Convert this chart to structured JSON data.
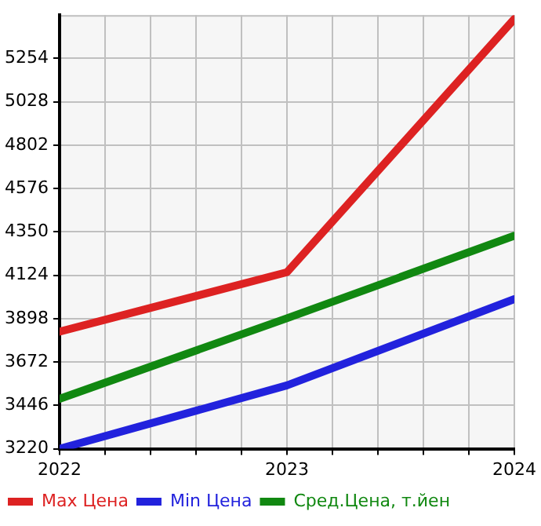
{
  "chart_data": {
    "type": "line",
    "x": [
      2022,
      2023,
      2024
    ],
    "series": [
      {
        "name": "Max Цена",
        "color": "#dd2222",
        "values": [
          3830,
          4140,
          5460
        ]
      },
      {
        "name": "Min Цена",
        "color": "#2222dd",
        "values": [
          3220,
          3550,
          4000
        ]
      },
      {
        "name": "Сред.Цена, т.йен",
        "color": "#118811",
        "values": [
          3480,
          3900,
          4330
        ]
      }
    ],
    "xlim": [
      2022,
      2024
    ],
    "xticks": [
      2022,
      {
        "value": 2022.2,
        "label": null
      },
      {
        "value": 2022.4,
        "label": null
      },
      {
        "value": 2022.6,
        "label": null
      },
      {
        "value": 2022.8,
        "label": null
      },
      2023,
      {
        "value": 2023.2,
        "label": null
      },
      {
        "value": 2023.4,
        "label": null
      },
      {
        "value": 2023.6,
        "label": null
      },
      {
        "value": 2023.8,
        "label": null
      },
      2024
    ],
    "ylim": [
      3220,
      5480
    ],
    "yticks": [
      3220,
      3446,
      3672,
      3898,
      4124,
      4350,
      4576,
      4802,
      5028,
      5254
    ],
    "grid": true,
    "legend": "bottom",
    "marker": "none",
    "line_style": "solid"
  }
}
